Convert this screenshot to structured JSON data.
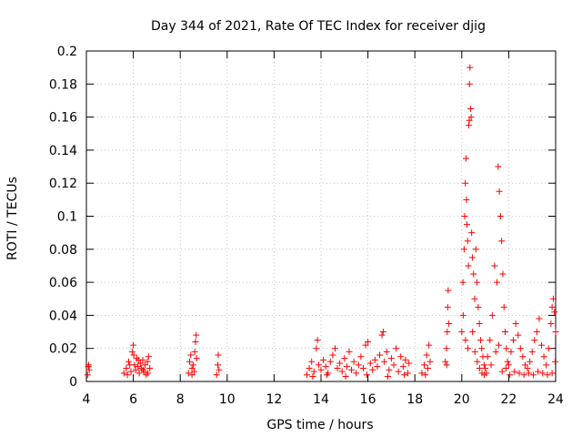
{
  "chart_data": {
    "type": "scatter",
    "title": "Day 344 of 2021, Rate Of TEC Index for receiver djig",
    "xlabel": "GPS time / hours",
    "ylabel": "ROTI / TECUs",
    "xlim": [
      4,
      24
    ],
    "ylim": [
      0,
      0.2
    ],
    "xticks": [
      4,
      6,
      8,
      10,
      12,
      14,
      16,
      18,
      20,
      22,
      24
    ],
    "yticks": [
      0,
      0.02,
      0.04,
      0.06,
      0.08,
      0.1,
      0.12,
      0.14,
      0.16,
      0.18,
      0.2
    ],
    "xtick_labels": [
      "4",
      "6",
      "8",
      "10",
      "12",
      "14",
      "16",
      "18",
      "20",
      "22",
      "24"
    ],
    "ytick_labels": [
      "0",
      "0.02",
      "0.04",
      "0.06",
      "0.08",
      "0.1",
      "0.12",
      "0.14",
      "0.16",
      "0.18",
      "0.2"
    ],
    "grid": true,
    "marker": "plus",
    "color": "#ff0000",
    "series": [
      {
        "name": "ROTI",
        "points": [
          [
            4.05,
            0.004
          ],
          [
            4.08,
            0.009
          ],
          [
            4.12,
            0.007
          ],
          [
            4.1,
            0.01
          ],
          [
            5.6,
            0.005
          ],
          [
            5.7,
            0.008
          ],
          [
            5.8,
            0.012
          ],
          [
            5.9,
            0.006
          ],
          [
            5.95,
            0.018
          ],
          [
            6.0,
            0.022
          ],
          [
            6.05,
            0.01
          ],
          [
            6.1,
            0.007
          ],
          [
            6.15,
            0.014
          ],
          [
            6.2,
            0.009
          ],
          [
            6.25,
            0.005
          ],
          [
            6.3,
            0.011
          ],
          [
            6.35,
            0.008
          ],
          [
            6.4,
            0.013
          ],
          [
            6.45,
            0.006
          ],
          [
            6.5,
            0.01
          ],
          [
            6.55,
            0.004
          ],
          [
            6.6,
            0.012
          ],
          [
            6.65,
            0.015
          ],
          [
            6.7,
            0.008
          ],
          [
            5.75,
            0.004
          ],
          [
            5.85,
            0.01
          ],
          [
            6.02,
            0.016
          ],
          [
            6.22,
            0.013
          ],
          [
            6.42,
            0.007
          ],
          [
            6.62,
            0.005
          ],
          [
            8.35,
            0.005
          ],
          [
            8.4,
            0.012
          ],
          [
            8.45,
            0.016
          ],
          [
            8.5,
            0.008
          ],
          [
            8.55,
            0.01
          ],
          [
            8.6,
            0.006
          ],
          [
            8.65,
            0.024
          ],
          [
            8.68,
            0.028
          ],
          [
            8.7,
            0.014
          ],
          [
            8.62,
            0.018
          ],
          [
            8.5,
            0.004
          ],
          [
            9.55,
            0.004
          ],
          [
            9.6,
            0.01
          ],
          [
            9.62,
            0.016
          ],
          [
            9.65,
            0.007
          ],
          [
            13.4,
            0.004
          ],
          [
            13.5,
            0.008
          ],
          [
            13.6,
            0.012
          ],
          [
            13.7,
            0.006
          ],
          [
            13.8,
            0.02
          ],
          [
            13.85,
            0.025
          ],
          [
            13.9,
            0.01
          ],
          [
            14.0,
            0.007
          ],
          [
            14.1,
            0.013
          ],
          [
            14.2,
            0.009
          ],
          [
            14.3,
            0.005
          ],
          [
            14.4,
            0.012
          ],
          [
            14.5,
            0.016
          ],
          [
            14.6,
            0.02
          ],
          [
            14.7,
            0.008
          ],
          [
            14.8,
            0.011
          ],
          [
            14.9,
            0.006
          ],
          [
            15.0,
            0.014
          ],
          [
            15.1,
            0.009
          ],
          [
            15.2,
            0.018
          ],
          [
            15.3,
            0.007
          ],
          [
            15.4,
            0.012
          ],
          [
            15.5,
            0.005
          ],
          [
            15.6,
            0.01
          ],
          [
            15.7,
            0.015
          ],
          [
            15.8,
            0.008
          ],
          [
            15.9,
            0.022
          ],
          [
            16.0,
            0.024
          ],
          [
            16.1,
            0.011
          ],
          [
            16.2,
            0.007
          ],
          [
            16.3,
            0.013
          ],
          [
            16.4,
            0.009
          ],
          [
            16.5,
            0.016
          ],
          [
            16.6,
            0.028
          ],
          [
            16.65,
            0.03
          ],
          [
            16.7,
            0.012
          ],
          [
            16.8,
            0.018
          ],
          [
            16.9,
            0.007
          ],
          [
            17.0,
            0.014
          ],
          [
            17.1,
            0.01
          ],
          [
            17.2,
            0.02
          ],
          [
            17.3,
            0.006
          ],
          [
            17.4,
            0.015
          ],
          [
            17.5,
            0.009
          ],
          [
            17.6,
            0.013
          ],
          [
            17.7,
            0.005
          ],
          [
            17.75,
            0.011
          ],
          [
            13.65,
            0.003
          ],
          [
            14.25,
            0.004
          ],
          [
            15.05,
            0.003
          ],
          [
            15.95,
            0.004
          ],
          [
            16.85,
            0.003
          ],
          [
            17.55,
            0.004
          ],
          [
            18.3,
            0.005
          ],
          [
            18.4,
            0.01
          ],
          [
            18.5,
            0.016
          ],
          [
            18.55,
            0.008
          ],
          [
            18.6,
            0.022
          ],
          [
            18.65,
            0.012
          ],
          [
            18.45,
            0.004
          ],
          [
            19.3,
            0.012
          ],
          [
            19.35,
            0.02
          ],
          [
            19.38,
            0.03
          ],
          [
            19.4,
            0.045
          ],
          [
            19.42,
            0.055
          ],
          [
            19.45,
            0.035
          ],
          [
            19.36,
            0.01
          ],
          [
            20.0,
            0.03
          ],
          [
            20.05,
            0.06
          ],
          [
            20.1,
            0.08
          ],
          [
            20.12,
            0.1
          ],
          [
            20.15,
            0.12
          ],
          [
            20.18,
            0.135
          ],
          [
            20.2,
            0.11
          ],
          [
            20.22,
            0.095
          ],
          [
            20.25,
            0.085
          ],
          [
            20.28,
            0.07
          ],
          [
            20.3,
            0.155
          ],
          [
            20.32,
            0.158
          ],
          [
            20.33,
            0.18
          ],
          [
            20.35,
            0.19
          ],
          [
            20.38,
            0.165
          ],
          [
            20.4,
            0.16
          ],
          [
            20.42,
            0.09
          ],
          [
            20.45,
            0.075
          ],
          [
            20.5,
            0.065
          ],
          [
            20.55,
            0.05
          ],
          [
            20.6,
            0.08
          ],
          [
            20.65,
            0.06
          ],
          [
            20.7,
            0.045
          ],
          [
            20.75,
            0.035
          ],
          [
            20.8,
            0.025
          ],
          [
            20.85,
            0.02
          ],
          [
            20.9,
            0.015
          ],
          [
            20.95,
            0.01
          ],
          [
            20.06,
            0.04
          ],
          [
            20.16,
            0.025
          ],
          [
            20.26,
            0.02
          ],
          [
            20.46,
            0.03
          ],
          [
            20.56,
            0.018
          ],
          [
            20.66,
            0.012
          ],
          [
            20.76,
            0.008
          ],
          [
            20.86,
            0.005
          ],
          [
            20.96,
            0.004
          ],
          [
            21.0,
            0.008
          ],
          [
            21.1,
            0.015
          ],
          [
            21.2,
            0.025
          ],
          [
            21.3,
            0.04
          ],
          [
            21.4,
            0.07
          ],
          [
            21.5,
            0.06
          ],
          [
            21.55,
            0.13
          ],
          [
            21.6,
            0.115
          ],
          [
            21.65,
            0.1
          ],
          [
            21.7,
            0.085
          ],
          [
            21.75,
            0.065
          ],
          [
            21.8,
            0.045
          ],
          [
            21.85,
            0.03
          ],
          [
            21.9,
            0.02
          ],
          [
            21.95,
            0.012
          ],
          [
            21.05,
            0.005
          ],
          [
            21.25,
            0.01
          ],
          [
            21.45,
            0.018
          ],
          [
            21.58,
            0.022
          ],
          [
            21.72,
            0.006
          ],
          [
            21.88,
            0.008
          ],
          [
            22.0,
            0.01
          ],
          [
            22.1,
            0.018
          ],
          [
            22.2,
            0.025
          ],
          [
            22.3,
            0.035
          ],
          [
            22.4,
            0.028
          ],
          [
            22.5,
            0.02
          ],
          [
            22.6,
            0.015
          ],
          [
            22.7,
            0.01
          ],
          [
            22.8,
            0.008
          ],
          [
            22.9,
            0.012
          ],
          [
            23.0,
            0.018
          ],
          [
            23.1,
            0.025
          ],
          [
            23.2,
            0.03
          ],
          [
            23.3,
            0.038
          ],
          [
            23.4,
            0.022
          ],
          [
            23.5,
            0.015
          ],
          [
            23.6,
            0.01
          ],
          [
            23.7,
            0.02
          ],
          [
            23.8,
            0.035
          ],
          [
            23.85,
            0.045
          ],
          [
            23.9,
            0.05
          ],
          [
            23.95,
            0.042
          ],
          [
            24.0,
            0.03
          ],
          [
            22.05,
            0.004
          ],
          [
            22.25,
            0.006
          ],
          [
            22.45,
            0.005
          ],
          [
            22.65,
            0.004
          ],
          [
            22.85,
            0.005
          ],
          [
            23.05,
            0.004
          ],
          [
            23.25,
            0.006
          ],
          [
            23.45,
            0.005
          ],
          [
            23.65,
            0.004
          ],
          [
            23.85,
            0.005
          ],
          [
            23.98,
            0.012
          ]
        ]
      }
    ]
  }
}
